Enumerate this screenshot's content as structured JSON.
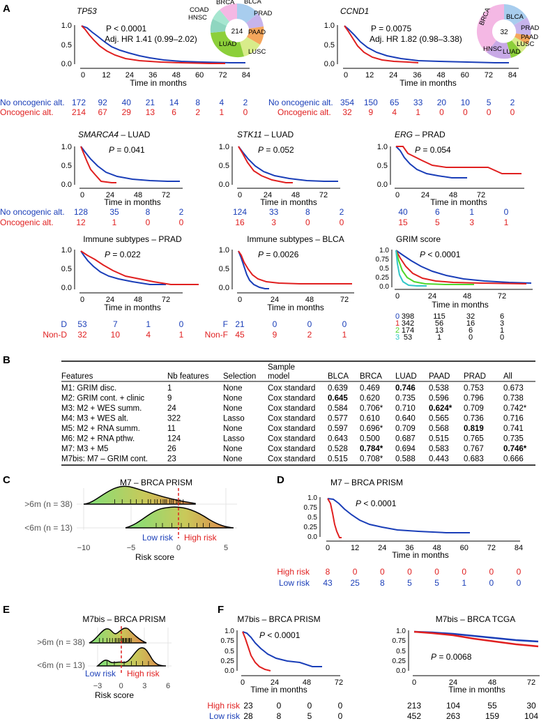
{
  "panelA": {
    "letter": "A",
    "tp53": {
      "gene": "TP53",
      "p": "P < 0.0001",
      "hr": "Adj. HR 1.41 (0.99–2.02)",
      "pie": {
        "center": "214",
        "labels": [
          "BRCA",
          "BLCA",
          "PRAD",
          "PAAD",
          "LUSC",
          "LUAD",
          "HNSC",
          "COAD"
        ]
      },
      "xticks": [
        "0",
        "12",
        "24",
        "36",
        "48",
        "60",
        "72",
        "84"
      ],
      "xlabel": "Time in months",
      "risk": {
        "blue_label": "No oncogenic alt.",
        "red_label": "Oncogenic alt.",
        "blue": [
          "172",
          "92",
          "40",
          "21",
          "14",
          "8",
          "4",
          "2"
        ],
        "red": [
          "214",
          "67",
          "29",
          "13",
          "6",
          "2",
          "1",
          "0"
        ]
      }
    },
    "ccnd1": {
      "gene": "CCND1",
      "p": "P = 0.0075",
      "hr": "Adj. HR 1.82 (0.98–3.38)",
      "pie": {
        "center": "32",
        "labels": [
          "BRCA",
          "BLCA",
          "PRAD",
          "PAAD",
          "LUSC",
          "LUAD",
          "HNSC"
        ]
      },
      "xticks": [
        "0",
        "12",
        "24",
        "36",
        "48",
        "60",
        "72",
        "84"
      ],
      "xlabel": "Time in months",
      "risk": {
        "blue": [
          "354",
          "150",
          "65",
          "33",
          "20",
          "10",
          "5",
          "2"
        ],
        "red": [
          "32",
          "9",
          "4",
          "1",
          "0",
          "0",
          "0",
          "0"
        ]
      }
    },
    "smarca4": {
      "title_gene": "SMARCA4",
      "title_rest": " – LUAD",
      "p": "P = 0.041",
      "xticks": [
        "0",
        "24",
        "48",
        "72"
      ],
      "xlabel": "Time in months",
      "risk": {
        "blue": [
          "128",
          "35",
          "8",
          "2"
        ],
        "red": [
          "12",
          "1",
          "0",
          "0"
        ]
      }
    },
    "stk11": {
      "title_gene": "STK11",
      "title_rest": " – LUAD",
      "p": "P = 0.052",
      "xticks": [
        "0",
        "24",
        "48",
        "72"
      ],
      "xlabel": "Time in months",
      "risk": {
        "blue": [
          "124",
          "33",
          "8",
          "2"
        ],
        "red": [
          "16",
          "3",
          "0",
          "0"
        ]
      }
    },
    "erg": {
      "title_gene": "ERG",
      "title_rest": " – PRAD",
      "p": "P = 0.054",
      "xticks": [
        "0",
        "24",
        "48",
        "72"
      ],
      "xlabel": "Time in months",
      "risk": {
        "blue": [
          "40",
          "6",
          "1",
          "0"
        ],
        "red": [
          "15",
          "5",
          "3",
          "1"
        ]
      }
    },
    "imm_prad": {
      "title": "Immune subtypes – PRAD",
      "p": "P = 0.022",
      "xticks": [
        "0",
        "24",
        "48",
        "72"
      ],
      "xlabel": "Time in months",
      "risk": {
        "blue_label": "D",
        "red_label": "Non-D",
        "blue": [
          "53",
          "7",
          "1",
          "0"
        ],
        "red": [
          "32",
          "10",
          "4",
          "1"
        ]
      }
    },
    "imm_blca": {
      "title": "Immune subtypes – BLCA",
      "p": "P = 0.0026",
      "xticks": [
        "0",
        "24",
        "48",
        "72"
      ],
      "xlabel": "Time in months",
      "risk": {
        "blue_label": "F",
        "red_label": "Non-F",
        "blue": [
          "21",
          "0",
          "0",
          "0"
        ],
        "red": [
          "45",
          "9",
          "2",
          "1"
        ]
      }
    },
    "grim": {
      "title": "GRIM score",
      "p": "P < 0.0001",
      "xticks": [
        "0",
        "24",
        "48",
        "72"
      ],
      "xlabel": "Time in months",
      "risk": [
        {
          "g": "0",
          "v": [
            "398",
            "115",
            "32",
            "6"
          ]
        },
        {
          "g": "1",
          "v": [
            "342",
            "56",
            "16",
            "3"
          ]
        },
        {
          "g": "2",
          "v": [
            "174",
            "13",
            "6",
            "1"
          ]
        },
        {
          "g": "3",
          "v": [
            "53",
            "1",
            "0",
            "0"
          ]
        }
      ]
    },
    "yticks": [
      "1.0",
      "0.5",
      "0.0"
    ],
    "yticks4": [
      "1.0",
      "0.75",
      "0.5",
      "0.25",
      "0.0"
    ]
  },
  "panelB": {
    "letter": "B",
    "headers": [
      "Features",
      "Nb features",
      "Selection",
      "Sample model",
      "BLCA",
      "BRCA",
      "LUAD",
      "PAAD",
      "PRAD",
      "All"
    ],
    "header_sample_top": "Sample",
    "header_sample_bottom": "model",
    "rows": [
      [
        "M1: GRIM disc.",
        "1",
        "None",
        "Cox standard",
        "0.639",
        "0.469",
        "0.746",
        "0.538",
        "0.753",
        "0.673"
      ],
      [
        "M2: GRIM cont. + clinic",
        "9",
        "None",
        "Cox standard",
        "0.645",
        "0.620",
        "0.735",
        "0.596",
        "0.796",
        "0.738"
      ],
      [
        "M3: M2 + WES summ.",
        "24",
        "None",
        "Cox standard",
        "0.584",
        "0.706*",
        "0.710",
        "0.624*",
        "0.709",
        "0.742*"
      ],
      [
        "M4: M3 + WES alt.",
        "322",
        "Lasso",
        "Cox standard",
        "0.577",
        "0.610",
        "0.640",
        "0.565",
        "0.736",
        "0.716"
      ],
      [
        "M5: M2 + RNA summ.",
        "11",
        "None",
        "Cox standard",
        "0.597",
        "0.696*",
        "0.709",
        "0.568",
        "0.819",
        "0.741"
      ],
      [
        "M6: M2 + RNA pthw.",
        "124",
        "Lasso",
        "Cox standard",
        "0.643",
        "0.500",
        "0.687",
        "0.515",
        "0.765",
        "0.735"
      ],
      [
        "M7: M3 + M5",
        "26",
        "None",
        "Cox standard",
        "0.528",
        "0.784*",
        "0.694",
        "0.583",
        "0.767",
        "0.746*"
      ],
      [
        "M7bis: M7 – GRIM cont.",
        "23",
        "None",
        "Cox standard",
        "0.515",
        "0.708*",
        "0.588",
        "0.443",
        "0.683",
        "0.666"
      ]
    ],
    "bold": [
      [
        1,
        4
      ],
      [
        0,
        6
      ],
      [
        2,
        7
      ],
      [
        4,
        8
      ],
      [
        6,
        5
      ],
      [
        6,
        9
      ]
    ]
  },
  "panelC": {
    "letter": "C",
    "title": "M7 – BRCA PRISM",
    "rows": [
      ">6m (n = 38)",
      "<6m (n = 13)"
    ],
    "low": "Low risk",
    "high": "High risk",
    "xticks": [
      "−10",
      "−5",
      "0",
      "5"
    ],
    "xlabel": "Risk score"
  },
  "panelD": {
    "letter": "D",
    "title": "M7 – BRCA PRISM",
    "p": "P < 0.0001",
    "xticks": [
      "0",
      "12",
      "24",
      "36",
      "48",
      "60",
      "72",
      "84"
    ],
    "xlabel": "Time in months",
    "risk": {
      "red_label": "High risk",
      "blue_label": "Low risk",
      "red": [
        "8",
        "0",
        "0",
        "0",
        "0",
        "0",
        "0",
        "0"
      ],
      "blue": [
        "43",
        "25",
        "8",
        "5",
        "5",
        "1",
        "0",
        "0"
      ]
    }
  },
  "panelE": {
    "letter": "E",
    "title": "M7bis – BRCA PRISM",
    "rows": [
      ">6m (n = 38)",
      "<6m (n = 13)"
    ],
    "low": "Low risk",
    "high": "High risk",
    "xticks": [
      "−3",
      "0",
      "3",
      "6"
    ],
    "xlabel": "Risk score"
  },
  "panelF": {
    "letter": "F",
    "prism": {
      "title": "M7bis – BRCA PRISM",
      "p": "P < 0.0001",
      "xticks": [
        "0",
        "24",
        "48",
        "72"
      ],
      "xlabel": "Time in months",
      "risk": {
        "red_label": "High risk",
        "blue_label": "Low risk",
        "red": [
          "23",
          "0",
          "0",
          "0"
        ],
        "blue": [
          "28",
          "8",
          "5",
          "0"
        ]
      }
    },
    "tcga": {
      "title": "M7bis – BRCA TCGA",
      "p": "P = 0.0068",
      "xticks": [
        "0",
        "24",
        "48",
        "72"
      ],
      "xlabel": "Time in months",
      "risk": {
        "top": [
          "213",
          "104",
          "55",
          "30"
        ],
        "bottom": [
          "452",
          "263",
          "159",
          "104"
        ]
      }
    }
  }
}
